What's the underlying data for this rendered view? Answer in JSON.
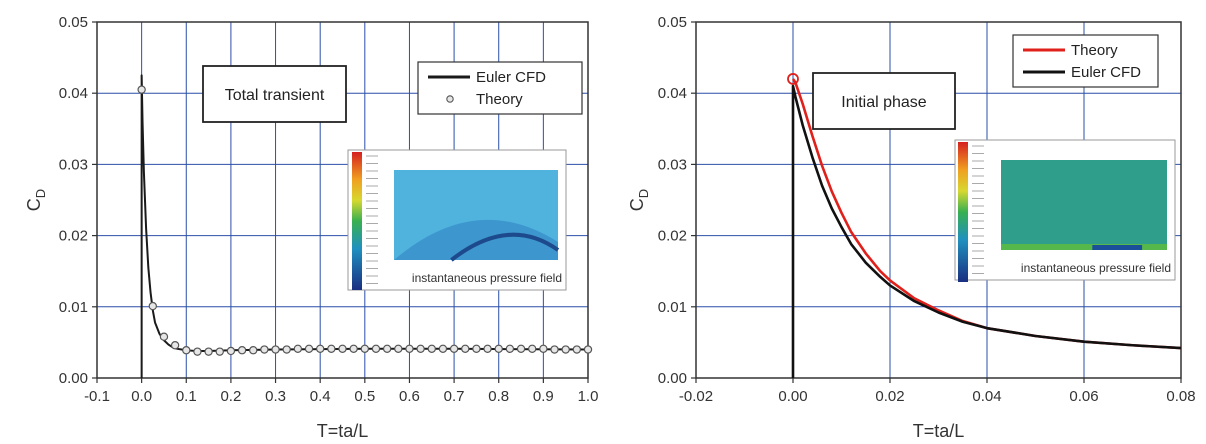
{
  "chart_data": [
    {
      "type": "line",
      "ylabel_main": "C",
      "ylabel_sub": "D",
      "xlabel": "T=ta/L",
      "xlim": [
        -0.1,
        1.0
      ],
      "ylim": [
        0.0,
        0.05
      ],
      "xticks": [
        "-0.1",
        "0.0",
        "0.1",
        "0.2",
        "0.3",
        "0.4",
        "0.5",
        "0.6",
        "0.7",
        "0.8",
        "0.9",
        "1.0"
      ],
      "yticks": [
        "0.00",
        "0.01",
        "0.02",
        "0.03",
        "0.04",
        "0.05"
      ],
      "grid": true,
      "annotation_box": "Total transient",
      "legend_position": "top-right",
      "inset_label": "instantaneous pressure field",
      "series": [
        {
          "name": "Euler CFD",
          "color": "#1a1a1a",
          "x": [
            0.0,
            0.0,
            0.002,
            0.005,
            0.01,
            0.015,
            0.02,
            0.025,
            0.03,
            0.04,
            0.05,
            0.06,
            0.07,
            0.08,
            0.1,
            0.12,
            0.15,
            0.2,
            0.3,
            0.5,
            0.7,
            1.0
          ],
          "y": [
            0.0,
            0.0425,
            0.036,
            0.029,
            0.021,
            0.0155,
            0.012,
            0.0095,
            0.0078,
            0.0062,
            0.0053,
            0.0047,
            0.0043,
            0.0041,
            0.0039,
            0.0038,
            0.0038,
            0.0039,
            0.004,
            0.0041,
            0.0041,
            0.004
          ]
        },
        {
          "name": "Theory",
          "color": "#777777",
          "marker": "circle",
          "x": [
            0.0,
            0.025,
            0.05,
            0.075,
            0.1,
            0.125,
            0.15,
            0.175,
            0.2,
            0.225,
            0.25,
            0.275,
            0.3,
            0.325,
            0.35,
            0.375,
            0.4,
            0.425,
            0.45,
            0.475,
            0.5,
            0.525,
            0.55,
            0.575,
            0.6,
            0.625,
            0.65,
            0.675,
            0.7,
            0.725,
            0.75,
            0.775,
            0.8,
            0.825,
            0.85,
            0.875,
            0.9,
            0.925,
            0.95,
            0.975,
            1.0
          ],
          "y": [
            0.0405,
            0.0101,
            0.0058,
            0.0046,
            0.0039,
            0.0037,
            0.0037,
            0.0037,
            0.0038,
            0.0039,
            0.0039,
            0.004,
            0.004,
            0.004,
            0.0041,
            0.0041,
            0.0041,
            0.0041,
            0.0041,
            0.0041,
            0.0041,
            0.0041,
            0.0041,
            0.0041,
            0.0041,
            0.0041,
            0.0041,
            0.0041,
            0.0041,
            0.0041,
            0.0041,
            0.0041,
            0.0041,
            0.0041,
            0.0041,
            0.0041,
            0.0041,
            0.004,
            0.004,
            0.004,
            0.004
          ]
        }
      ]
    },
    {
      "type": "line",
      "ylabel_main": "C",
      "ylabel_sub": "D",
      "xlabel": "T=ta/L",
      "xlim": [
        -0.02,
        0.08
      ],
      "ylim": [
        0.0,
        0.05
      ],
      "xticks": [
        "-0.02",
        "0.00",
        "0.02",
        "0.04",
        "0.06",
        "0.08"
      ],
      "yticks": [
        "0.00",
        "0.01",
        "0.02",
        "0.03",
        "0.04",
        "0.05"
      ],
      "grid": true,
      "annotation_box": "Initial phase",
      "legend_position": "top-right",
      "inset_label": "instantaneous pressure field",
      "series": [
        {
          "name": "Theory",
          "color": "#e0201b",
          "x": [
            0.0,
            0.0005,
            0.002,
            0.004,
            0.006,
            0.008,
            0.01,
            0.012,
            0.015,
            0.018,
            0.02,
            0.025,
            0.03,
            0.035,
            0.04,
            0.05,
            0.06,
            0.07,
            0.08
          ],
          "y": [
            0.042,
            0.0415,
            0.0385,
            0.034,
            0.0298,
            0.0262,
            0.0232,
            0.0205,
            0.0175,
            0.015,
            0.0137,
            0.0112,
            0.0095,
            0.008,
            0.007,
            0.0059,
            0.0051,
            0.0046,
            0.0042
          ]
        },
        {
          "name": "Euler CFD",
          "color": "#111111",
          "x": [
            0.0,
            0.0,
            0.0005,
            0.002,
            0.004,
            0.006,
            0.008,
            0.01,
            0.012,
            0.015,
            0.018,
            0.02,
            0.025,
            0.03,
            0.035,
            0.04,
            0.05,
            0.06,
            0.07,
            0.08
          ],
          "y": [
            0.0,
            0.041,
            0.0395,
            0.0355,
            0.031,
            0.027,
            0.0238,
            0.0212,
            0.0188,
            0.0162,
            0.0142,
            0.013,
            0.0108,
            0.0092,
            0.0079,
            0.007,
            0.0059,
            0.0051,
            0.0046,
            0.0042
          ]
        }
      ],
      "theory_start_marker": {
        "x": 0.0,
        "y": 0.042,
        "color": "#e0201b"
      }
    }
  ]
}
